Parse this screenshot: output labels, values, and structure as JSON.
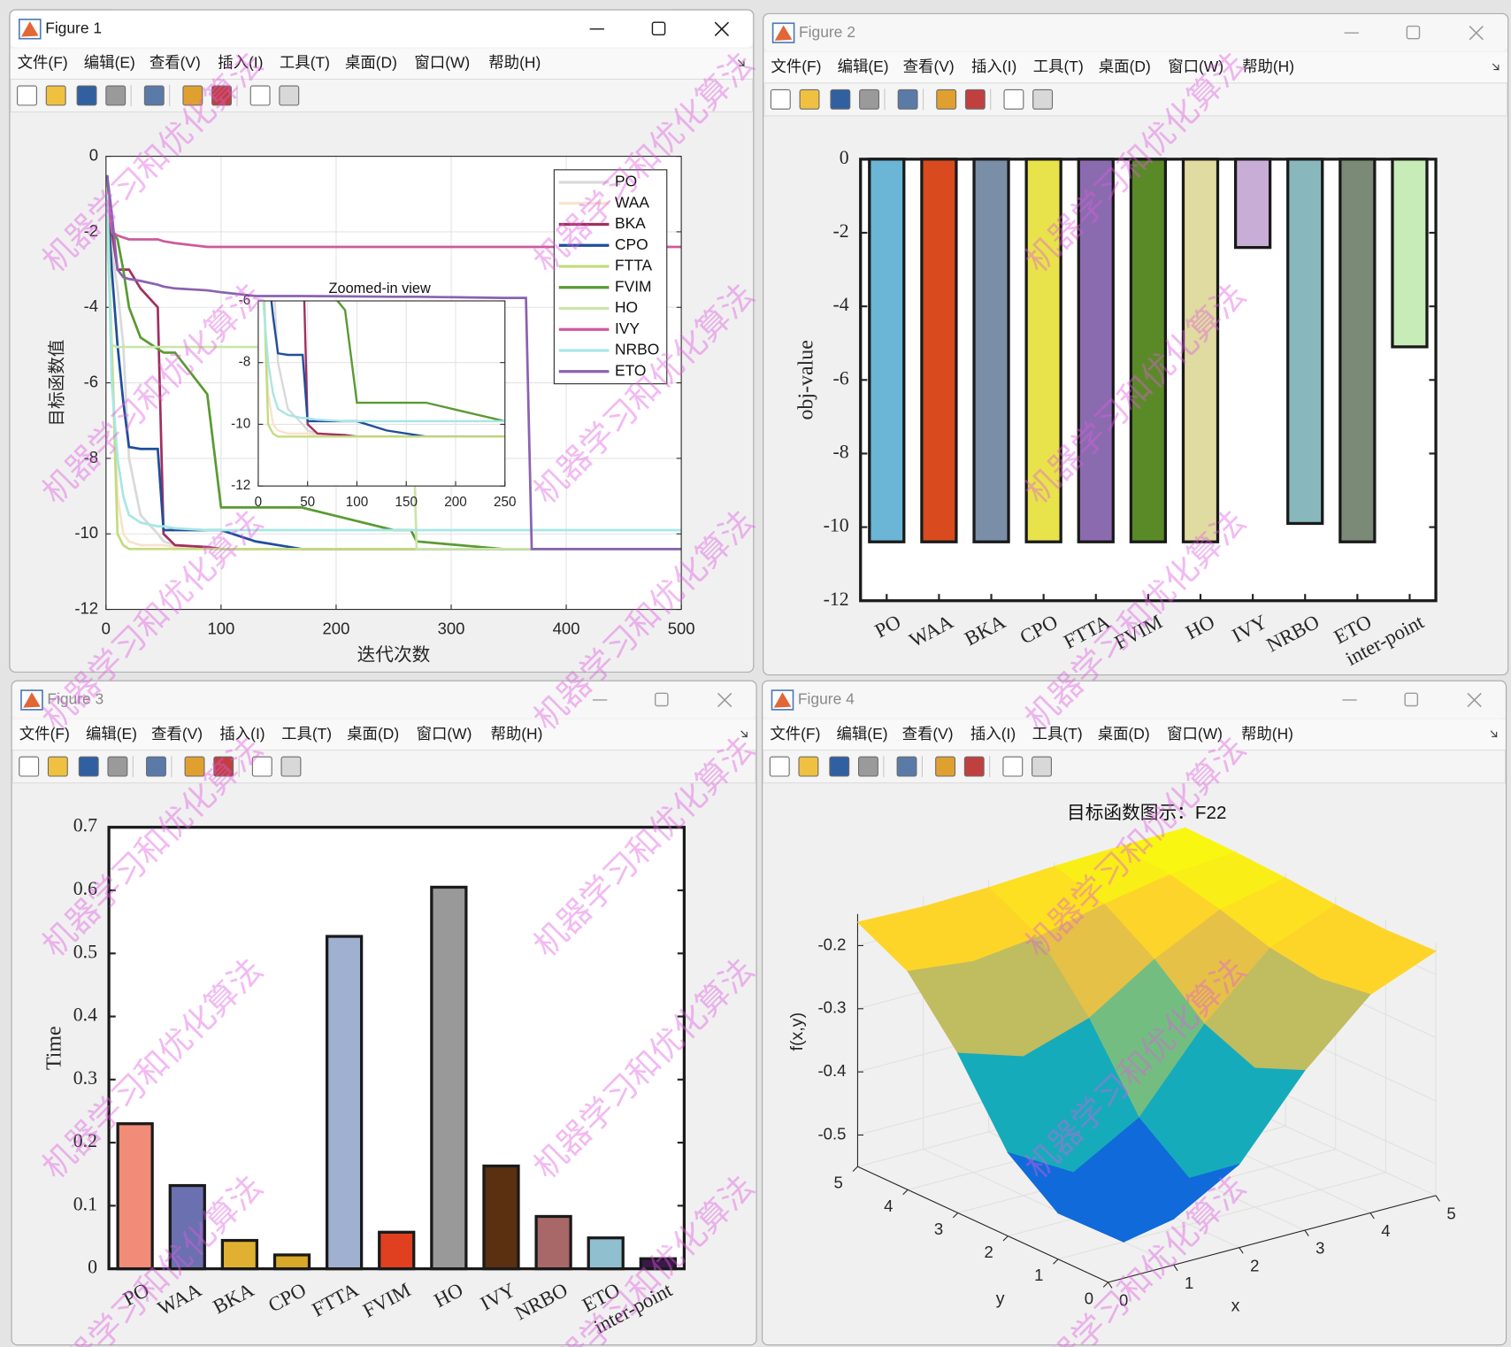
{
  "windows": [
    {
      "title": "Figure 1"
    },
    {
      "title": "Figure 2"
    },
    {
      "title": "Figure 3"
    },
    {
      "title": "Figure 4"
    }
  ],
  "menu": [
    "文件(F)",
    "编辑(E)",
    "查看(V)",
    "插入(I)",
    "工具(T)",
    "桌面(D)",
    "窗口(W)",
    "帮助(H)"
  ],
  "watermark": "机器学习和优化算法",
  "chart_data": [
    {
      "type": "line",
      "xlabel": "迭代次数",
      "ylabel": "目标函数值",
      "x": [
        1,
        5,
        10,
        15,
        20,
        30,
        45,
        50,
        60,
        88,
        100,
        130,
        170,
        250,
        265,
        270,
        345,
        365,
        370,
        500
      ],
      "series": [
        {
          "name": "PO",
          "color": "#d9d9d9",
          "values": [
            -1,
            -2.5,
            -3.5,
            -5,
            -8,
            -9.5,
            -10,
            -10.2,
            -10.3,
            -10.35,
            -10.4,
            -10.4,
            -10.4,
            -10.4,
            -10.4,
            -10.4,
            -10.4,
            -10.4,
            -10.4,
            -10.4
          ]
        },
        {
          "name": "WAA",
          "color": "#f9e2cc",
          "values": [
            -1.5,
            -5,
            -9,
            -10,
            -10.2,
            -10.3,
            -10.3,
            -10.3,
            -10.35,
            -10.4,
            -10.4,
            -10.4,
            -10.4,
            -10.4,
            -10.4,
            -10.4,
            -10.4,
            -10.4,
            -10.4,
            -10.4
          ]
        },
        {
          "name": "BKA",
          "color": "#a0305e",
          "values": [
            -0.5,
            -2,
            -3,
            -3,
            -3,
            -3.5,
            -4,
            -10,
            -10.3,
            -10.35,
            -10.4,
            -10.4,
            -10.4,
            -10.4,
            -10.4,
            -10.4,
            -10.4,
            -10.4,
            -10.4,
            -10.4
          ]
        },
        {
          "name": "CPO",
          "color": "#1f4e9c",
          "values": [
            -1,
            -3,
            -5,
            -6.5,
            -7.7,
            -7.75,
            -7.75,
            -9.9,
            -9.9,
            -9.9,
            -9.9,
            -10.2,
            -10.4,
            -10.4,
            -10.4,
            -10.4,
            -10.4,
            -10.4,
            -10.4,
            -10.4
          ]
        },
        {
          "name": "FTTA",
          "color": "#c3dc7d",
          "values": [
            -1,
            -5,
            -10,
            -10.3,
            -10.4,
            -10.4,
            -10.4,
            -10.4,
            -10.4,
            -10.4,
            -10.4,
            -10.4,
            -10.4,
            -10.4,
            -10.4,
            -10.4,
            -10.4,
            -10.4,
            -10.4,
            -10.4
          ]
        },
        {
          "name": "FVIM",
          "color": "#5a9a32",
          "values": [
            -0.5,
            -2,
            -2.2,
            -3,
            -4,
            -4.8,
            -5.1,
            -5.2,
            -5.2,
            -6.3,
            -9.3,
            -9.3,
            -9.3,
            -9.9,
            -9.9,
            -10.2,
            -10.4,
            -10.4,
            -10.4,
            -10.4
          ]
        },
        {
          "name": "HO",
          "color": "#c8e6a8",
          "values": [
            -2,
            -5,
            -5.05,
            -5.05,
            -5.05,
            -5.05,
            -5.05,
            -5.05,
            -5.05,
            -5.05,
            -5.05,
            -5.05,
            -5.05,
            -5.05,
            -5.05,
            -10.4,
            -10.4,
            -10.4,
            -10.4,
            -10.4
          ]
        },
        {
          "name": "IVY",
          "color": "#cc5a9e",
          "values": [
            -1,
            -2,
            -2.1,
            -2.15,
            -2.2,
            -2.2,
            -2.2,
            -2.25,
            -2.3,
            -2.4,
            -2.4,
            -2.4,
            -2.4,
            -2.4,
            -2.4,
            -2.4,
            -2.4,
            -2.4,
            -2.4,
            -2.4
          ]
        },
        {
          "name": "NRBO",
          "color": "#a8e6e6",
          "values": [
            -1,
            -6,
            -8,
            -9,
            -9.5,
            -9.7,
            -9.8,
            -9.8,
            -9.85,
            -9.9,
            -9.9,
            -9.9,
            -9.9,
            -9.9,
            -9.9,
            -9.9,
            -9.9,
            -9.9,
            -9.9,
            -9.9
          ]
        },
        {
          "name": "ETO",
          "color": "#8a62b0",
          "values": [
            -0.5,
            -1.5,
            -3,
            -3.2,
            -3.25,
            -3.3,
            -3.4,
            -3.45,
            -3.5,
            -3.55,
            -3.6,
            -3.7,
            -3.7,
            -3.72,
            -3.72,
            -3.72,
            -3.75,
            -3.75,
            -10.4,
            -10.4
          ]
        }
      ],
      "xlim": [
        0,
        500
      ],
      "ylim": [
        -12,
        0
      ],
      "xticks": [
        0,
        100,
        200,
        300,
        400,
        500
      ],
      "yticks": [
        0,
        -2,
        -4,
        -6,
        -8,
        -10,
        -12
      ],
      "grid": true,
      "legend": "northeast",
      "inset": {
        "title": "Zoomed-in view",
        "xlim": [
          0,
          250
        ],
        "ylim": [
          -12,
          -6
        ],
        "xticks": [
          0,
          50,
          100,
          150,
          200,
          250
        ],
        "yticks": [
          -6,
          -8,
          -10,
          -12
        ],
        "grid": true
      }
    },
    {
      "type": "bar",
      "ylabel": "obj-value",
      "categories": [
        "PO",
        "WAA",
        "BKA",
        "CPO",
        "FTTA",
        "FVIM",
        "HO",
        "IVY",
        "NRBO",
        "ETO",
        "inter-point"
      ],
      "values": [
        -10.4,
        -10.4,
        -10.4,
        -10.4,
        -10.4,
        -10.4,
        -10.4,
        -2.4,
        -9.9,
        -10.4,
        -5.1
      ],
      "colors": [
        "#6bb5d6",
        "#d94a1e",
        "#7a8ea8",
        "#e8e34a",
        "#8b6bb0",
        "#5a8a28",
        "#e0dba0",
        "#c8aed6",
        "#88b8bc",
        "#7a8a76",
        "#c8ecb8"
      ],
      "ylim": [
        -12,
        0
      ],
      "yticks": [
        0,
        -2,
        -4,
        -6,
        -8,
        -10,
        -12
      ]
    },
    {
      "type": "bar",
      "ylabel": "Time",
      "categories": [
        "PO",
        "WAA",
        "BKA",
        "CPO",
        "FTTA",
        "FVIM",
        "HO",
        "IVY",
        "NRBO",
        "ETO",
        "inter-point"
      ],
      "values": [
        0.23,
        0.132,
        0.045,
        0.022,
        0.527,
        0.058,
        0.605,
        0.163,
        0.083,
        0.049,
        0.016
      ],
      "colors": [
        "#f08c78",
        "#6a70b0",
        "#e0b030",
        "#d8a828",
        "#a0b0d0",
        "#e04020",
        "#999999",
        "#5a3010",
        "#a86868",
        "#90c0d0",
        "#3a1848"
      ],
      "ylim": [
        0,
        0.7
      ],
      "yticks": [
        0,
        0.1,
        0.2,
        0.3,
        0.4,
        0.5,
        0.6,
        0.7
      ]
    },
    {
      "type": "surface",
      "title": "目标函数图示：F22",
      "xlabel": "x",
      "ylabel": "y",
      "zlabel": "f(x,y)",
      "x": [
        0,
        1,
        2,
        3,
        4,
        5
      ],
      "y": [
        0,
        1,
        2,
        3,
        4,
        5
      ],
      "z": [
        [
          -0.418,
          -0.477,
          -0.418,
          -0.297,
          -0.204,
          -0.163
        ],
        [
          -0.477,
          -0.55,
          -0.477,
          -0.33,
          -0.216,
          -0.166
        ],
        [
          -0.418,
          -0.477,
          -0.418,
          -0.297,
          -0.204,
          -0.163
        ],
        [
          -0.297,
          -0.33,
          -0.297,
          -0.231,
          -0.18,
          -0.157
        ],
        [
          -0.204,
          -0.216,
          -0.204,
          -0.18,
          -0.161,
          -0.153
        ],
        [
          -0.163,
          -0.166,
          -0.163,
          -0.157,
          -0.153,
          -0.151
        ]
      ],
      "xlim": [
        0,
        5
      ],
      "ylim": [
        0,
        5
      ],
      "zlim": [
        -0.55,
        -0.15
      ],
      "xticks": [
        0,
        1,
        2,
        3,
        4,
        5
      ],
      "yticks": [
        0,
        1,
        2,
        3,
        4,
        5
      ],
      "zticks": [
        -0.5,
        -0.4,
        -0.3,
        -0.2
      ],
      "colormap": "parula",
      "grid": true
    }
  ]
}
